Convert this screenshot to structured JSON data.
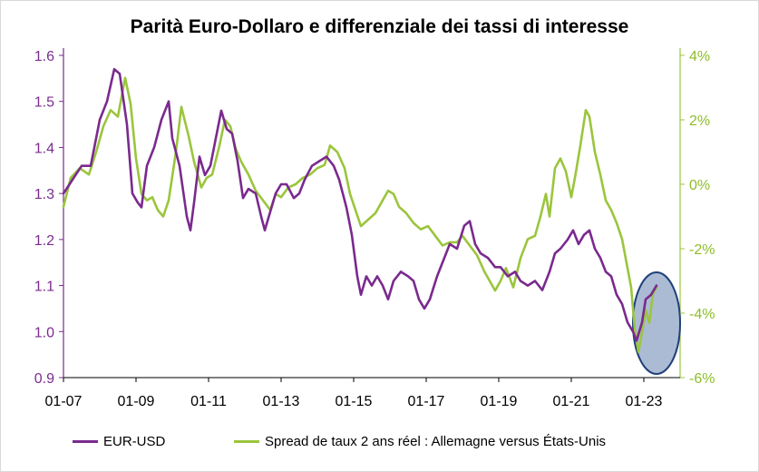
{
  "colors": {
    "eurusd": "#7a2a8e",
    "spread": "#9bc53d",
    "ellipse_fill": "#8fa4c6",
    "ellipse_stroke": "#1f3f7a"
  },
  "chart_data": {
    "type": "line",
    "title": "Parità Euro-Dollaro e differenziale dei tassi di interesse",
    "x_tick_labels": [
      "01-07",
      "01-09",
      "01-11",
      "01-13",
      "01-15",
      "01-17",
      "01-19",
      "01-21",
      "01-23"
    ],
    "y_left": {
      "range": [
        0.9,
        1.6
      ],
      "ticks": [
        "0.9",
        "1.0",
        "1.1",
        "1.2",
        "1.3",
        "1.4",
        "1.5",
        "1.6"
      ]
    },
    "y_right": {
      "range": [
        -6,
        4
      ],
      "ticks": [
        "-6%",
        "-4%",
        "-2%",
        "0%",
        "2%",
        "4%"
      ]
    },
    "series": [
      {
        "name": "EUR-USD",
        "axis": "left",
        "points": [
          [
            2007.0,
            1.3
          ],
          [
            2007.25,
            1.33
          ],
          [
            2007.5,
            1.36
          ],
          [
            2007.75,
            1.36
          ],
          [
            2008.0,
            1.46
          ],
          [
            2008.2,
            1.5
          ],
          [
            2008.4,
            1.57
          ],
          [
            2008.55,
            1.56
          ],
          [
            2008.75,
            1.45
          ],
          [
            2008.9,
            1.3
          ],
          [
            2009.05,
            1.28
          ],
          [
            2009.15,
            1.27
          ],
          [
            2009.3,
            1.36
          ],
          [
            2009.5,
            1.4
          ],
          [
            2009.7,
            1.46
          ],
          [
            2009.9,
            1.5
          ],
          [
            2010.0,
            1.42
          ],
          [
            2010.2,
            1.36
          ],
          [
            2010.4,
            1.25
          ],
          [
            2010.5,
            1.22
          ],
          [
            2010.6,
            1.28
          ],
          [
            2010.75,
            1.38
          ],
          [
            2010.9,
            1.34
          ],
          [
            2011.05,
            1.36
          ],
          [
            2011.2,
            1.42
          ],
          [
            2011.35,
            1.48
          ],
          [
            2011.5,
            1.44
          ],
          [
            2011.65,
            1.43
          ],
          [
            2011.8,
            1.37
          ],
          [
            2011.95,
            1.29
          ],
          [
            2012.1,
            1.31
          ],
          [
            2012.3,
            1.3
          ],
          [
            2012.45,
            1.25
          ],
          [
            2012.55,
            1.22
          ],
          [
            2012.7,
            1.26
          ],
          [
            2012.85,
            1.3
          ],
          [
            2013.0,
            1.32
          ],
          [
            2013.15,
            1.32
          ],
          [
            2013.35,
            1.29
          ],
          [
            2013.5,
            1.3
          ],
          [
            2013.65,
            1.33
          ],
          [
            2013.85,
            1.36
          ],
          [
            2014.05,
            1.37
          ],
          [
            2014.25,
            1.38
          ],
          [
            2014.45,
            1.36
          ],
          [
            2014.6,
            1.33
          ],
          [
            2014.8,
            1.27
          ],
          [
            2014.95,
            1.21
          ],
          [
            2015.1,
            1.12
          ],
          [
            2015.2,
            1.08
          ],
          [
            2015.35,
            1.12
          ],
          [
            2015.5,
            1.1
          ],
          [
            2015.65,
            1.12
          ],
          [
            2015.8,
            1.1
          ],
          [
            2015.95,
            1.07
          ],
          [
            2016.1,
            1.11
          ],
          [
            2016.3,
            1.13
          ],
          [
            2016.5,
            1.12
          ],
          [
            2016.65,
            1.11
          ],
          [
            2016.8,
            1.07
          ],
          [
            2016.95,
            1.05
          ],
          [
            2017.1,
            1.07
          ],
          [
            2017.3,
            1.12
          ],
          [
            2017.5,
            1.16
          ],
          [
            2017.65,
            1.19
          ],
          [
            2017.85,
            1.18
          ],
          [
            2018.05,
            1.23
          ],
          [
            2018.2,
            1.24
          ],
          [
            2018.35,
            1.19
          ],
          [
            2018.5,
            1.17
          ],
          [
            2018.7,
            1.16
          ],
          [
            2018.9,
            1.14
          ],
          [
            2019.05,
            1.14
          ],
          [
            2019.25,
            1.12
          ],
          [
            2019.45,
            1.13
          ],
          [
            2019.6,
            1.11
          ],
          [
            2019.8,
            1.1
          ],
          [
            2020.0,
            1.11
          ],
          [
            2020.2,
            1.09
          ],
          [
            2020.4,
            1.13
          ],
          [
            2020.55,
            1.17
          ],
          [
            2020.7,
            1.18
          ],
          [
            2020.9,
            1.2
          ],
          [
            2021.05,
            1.22
          ],
          [
            2021.2,
            1.19
          ],
          [
            2021.35,
            1.21
          ],
          [
            2021.5,
            1.22
          ],
          [
            2021.65,
            1.18
          ],
          [
            2021.8,
            1.16
          ],
          [
            2021.95,
            1.13
          ],
          [
            2022.1,
            1.12
          ],
          [
            2022.25,
            1.08
          ],
          [
            2022.4,
            1.06
          ],
          [
            2022.55,
            1.02
          ],
          [
            2022.7,
            1.0
          ],
          [
            2022.8,
            0.98
          ],
          [
            2022.95,
            1.02
          ],
          [
            2023.05,
            1.07
          ],
          [
            2023.2,
            1.08
          ],
          [
            2023.35,
            1.1
          ]
        ]
      },
      {
        "name": "Spread de taux 2 ans réel : Allemagne versus États-Unis",
        "axis": "right",
        "points": [
          [
            2007.0,
            -0.7
          ],
          [
            2007.2,
            0.2
          ],
          [
            2007.45,
            0.5
          ],
          [
            2007.7,
            0.3
          ],
          [
            2007.9,
            1.0
          ],
          [
            2008.1,
            1.8
          ],
          [
            2008.3,
            2.3
          ],
          [
            2008.5,
            2.1
          ],
          [
            2008.7,
            3.3
          ],
          [
            2008.85,
            2.5
          ],
          [
            2009.0,
            0.8
          ],
          [
            2009.15,
            -0.3
          ],
          [
            2009.3,
            -0.5
          ],
          [
            2009.45,
            -0.4
          ],
          [
            2009.6,
            -0.8
          ],
          [
            2009.75,
            -1.0
          ],
          [
            2009.9,
            -0.5
          ],
          [
            2010.1,
            1.0
          ],
          [
            2010.25,
            2.4
          ],
          [
            2010.45,
            1.5
          ],
          [
            2010.6,
            0.7
          ],
          [
            2010.8,
            -0.1
          ],
          [
            2010.95,
            0.2
          ],
          [
            2011.1,
            0.3
          ],
          [
            2011.3,
            1.2
          ],
          [
            2011.45,
            2.0
          ],
          [
            2011.6,
            1.8
          ],
          [
            2011.75,
            1.1
          ],
          [
            2011.9,
            0.7
          ],
          [
            2012.1,
            0.3
          ],
          [
            2012.3,
            -0.2
          ],
          [
            2012.5,
            -0.5
          ],
          [
            2012.7,
            -0.8
          ],
          [
            2012.85,
            -0.3
          ],
          [
            2013.0,
            -0.4
          ],
          [
            2013.2,
            -0.1
          ],
          [
            2013.4,
            0.0
          ],
          [
            2013.6,
            0.2
          ],
          [
            2013.8,
            0.3
          ],
          [
            2014.0,
            0.5
          ],
          [
            2014.2,
            0.6
          ],
          [
            2014.35,
            1.2
          ],
          [
            2014.55,
            1.0
          ],
          [
            2014.75,
            0.5
          ],
          [
            2014.9,
            -0.3
          ],
          [
            2015.05,
            -0.8
          ],
          [
            2015.2,
            -1.3
          ],
          [
            2015.4,
            -1.1
          ],
          [
            2015.6,
            -0.9
          ],
          [
            2015.8,
            -0.5
          ],
          [
            2015.95,
            -0.2
          ],
          [
            2016.1,
            -0.3
          ],
          [
            2016.25,
            -0.7
          ],
          [
            2016.45,
            -0.9
          ],
          [
            2016.65,
            -1.2
          ],
          [
            2016.85,
            -1.4
          ],
          [
            2017.05,
            -1.3
          ],
          [
            2017.25,
            -1.6
          ],
          [
            2017.45,
            -1.9
          ],
          [
            2017.65,
            -1.8
          ],
          [
            2017.85,
            -1.8
          ],
          [
            2018.0,
            -1.6
          ],
          [
            2018.2,
            -1.9
          ],
          [
            2018.4,
            -2.2
          ],
          [
            2018.6,
            -2.7
          ],
          [
            2018.75,
            -3.0
          ],
          [
            2018.9,
            -3.3
          ],
          [
            2019.05,
            -3.0
          ],
          [
            2019.2,
            -2.6
          ],
          [
            2019.4,
            -3.2
          ],
          [
            2019.6,
            -2.3
          ],
          [
            2019.8,
            -1.7
          ],
          [
            2020.0,
            -1.6
          ],
          [
            2020.15,
            -1.0
          ],
          [
            2020.3,
            -0.3
          ],
          [
            2020.4,
            -1.0
          ],
          [
            2020.55,
            0.5
          ],
          [
            2020.7,
            0.8
          ],
          [
            2020.85,
            0.4
          ],
          [
            2021.0,
            -0.4
          ],
          [
            2021.1,
            0.2
          ],
          [
            2021.25,
            1.2
          ],
          [
            2021.4,
            2.3
          ],
          [
            2021.5,
            2.1
          ],
          [
            2021.65,
            1.0
          ],
          [
            2021.8,
            0.3
          ],
          [
            2021.95,
            -0.5
          ],
          [
            2022.1,
            -0.8
          ],
          [
            2022.25,
            -1.2
          ],
          [
            2022.4,
            -1.7
          ],
          [
            2022.55,
            -2.6
          ],
          [
            2022.65,
            -3.2
          ],
          [
            2022.75,
            -4.5
          ],
          [
            2022.85,
            -5.2
          ],
          [
            2022.95,
            -4.6
          ],
          [
            2023.05,
            -3.9
          ],
          [
            2023.15,
            -4.3
          ],
          [
            2023.25,
            -3.4
          ],
          [
            2023.35,
            -3.2
          ]
        ]
      }
    ],
    "legend": [
      {
        "label": "EUR-USD"
      },
      {
        "label": "Spread de taux 2 ans réel : Allemagne versus États-Unis"
      }
    ]
  }
}
